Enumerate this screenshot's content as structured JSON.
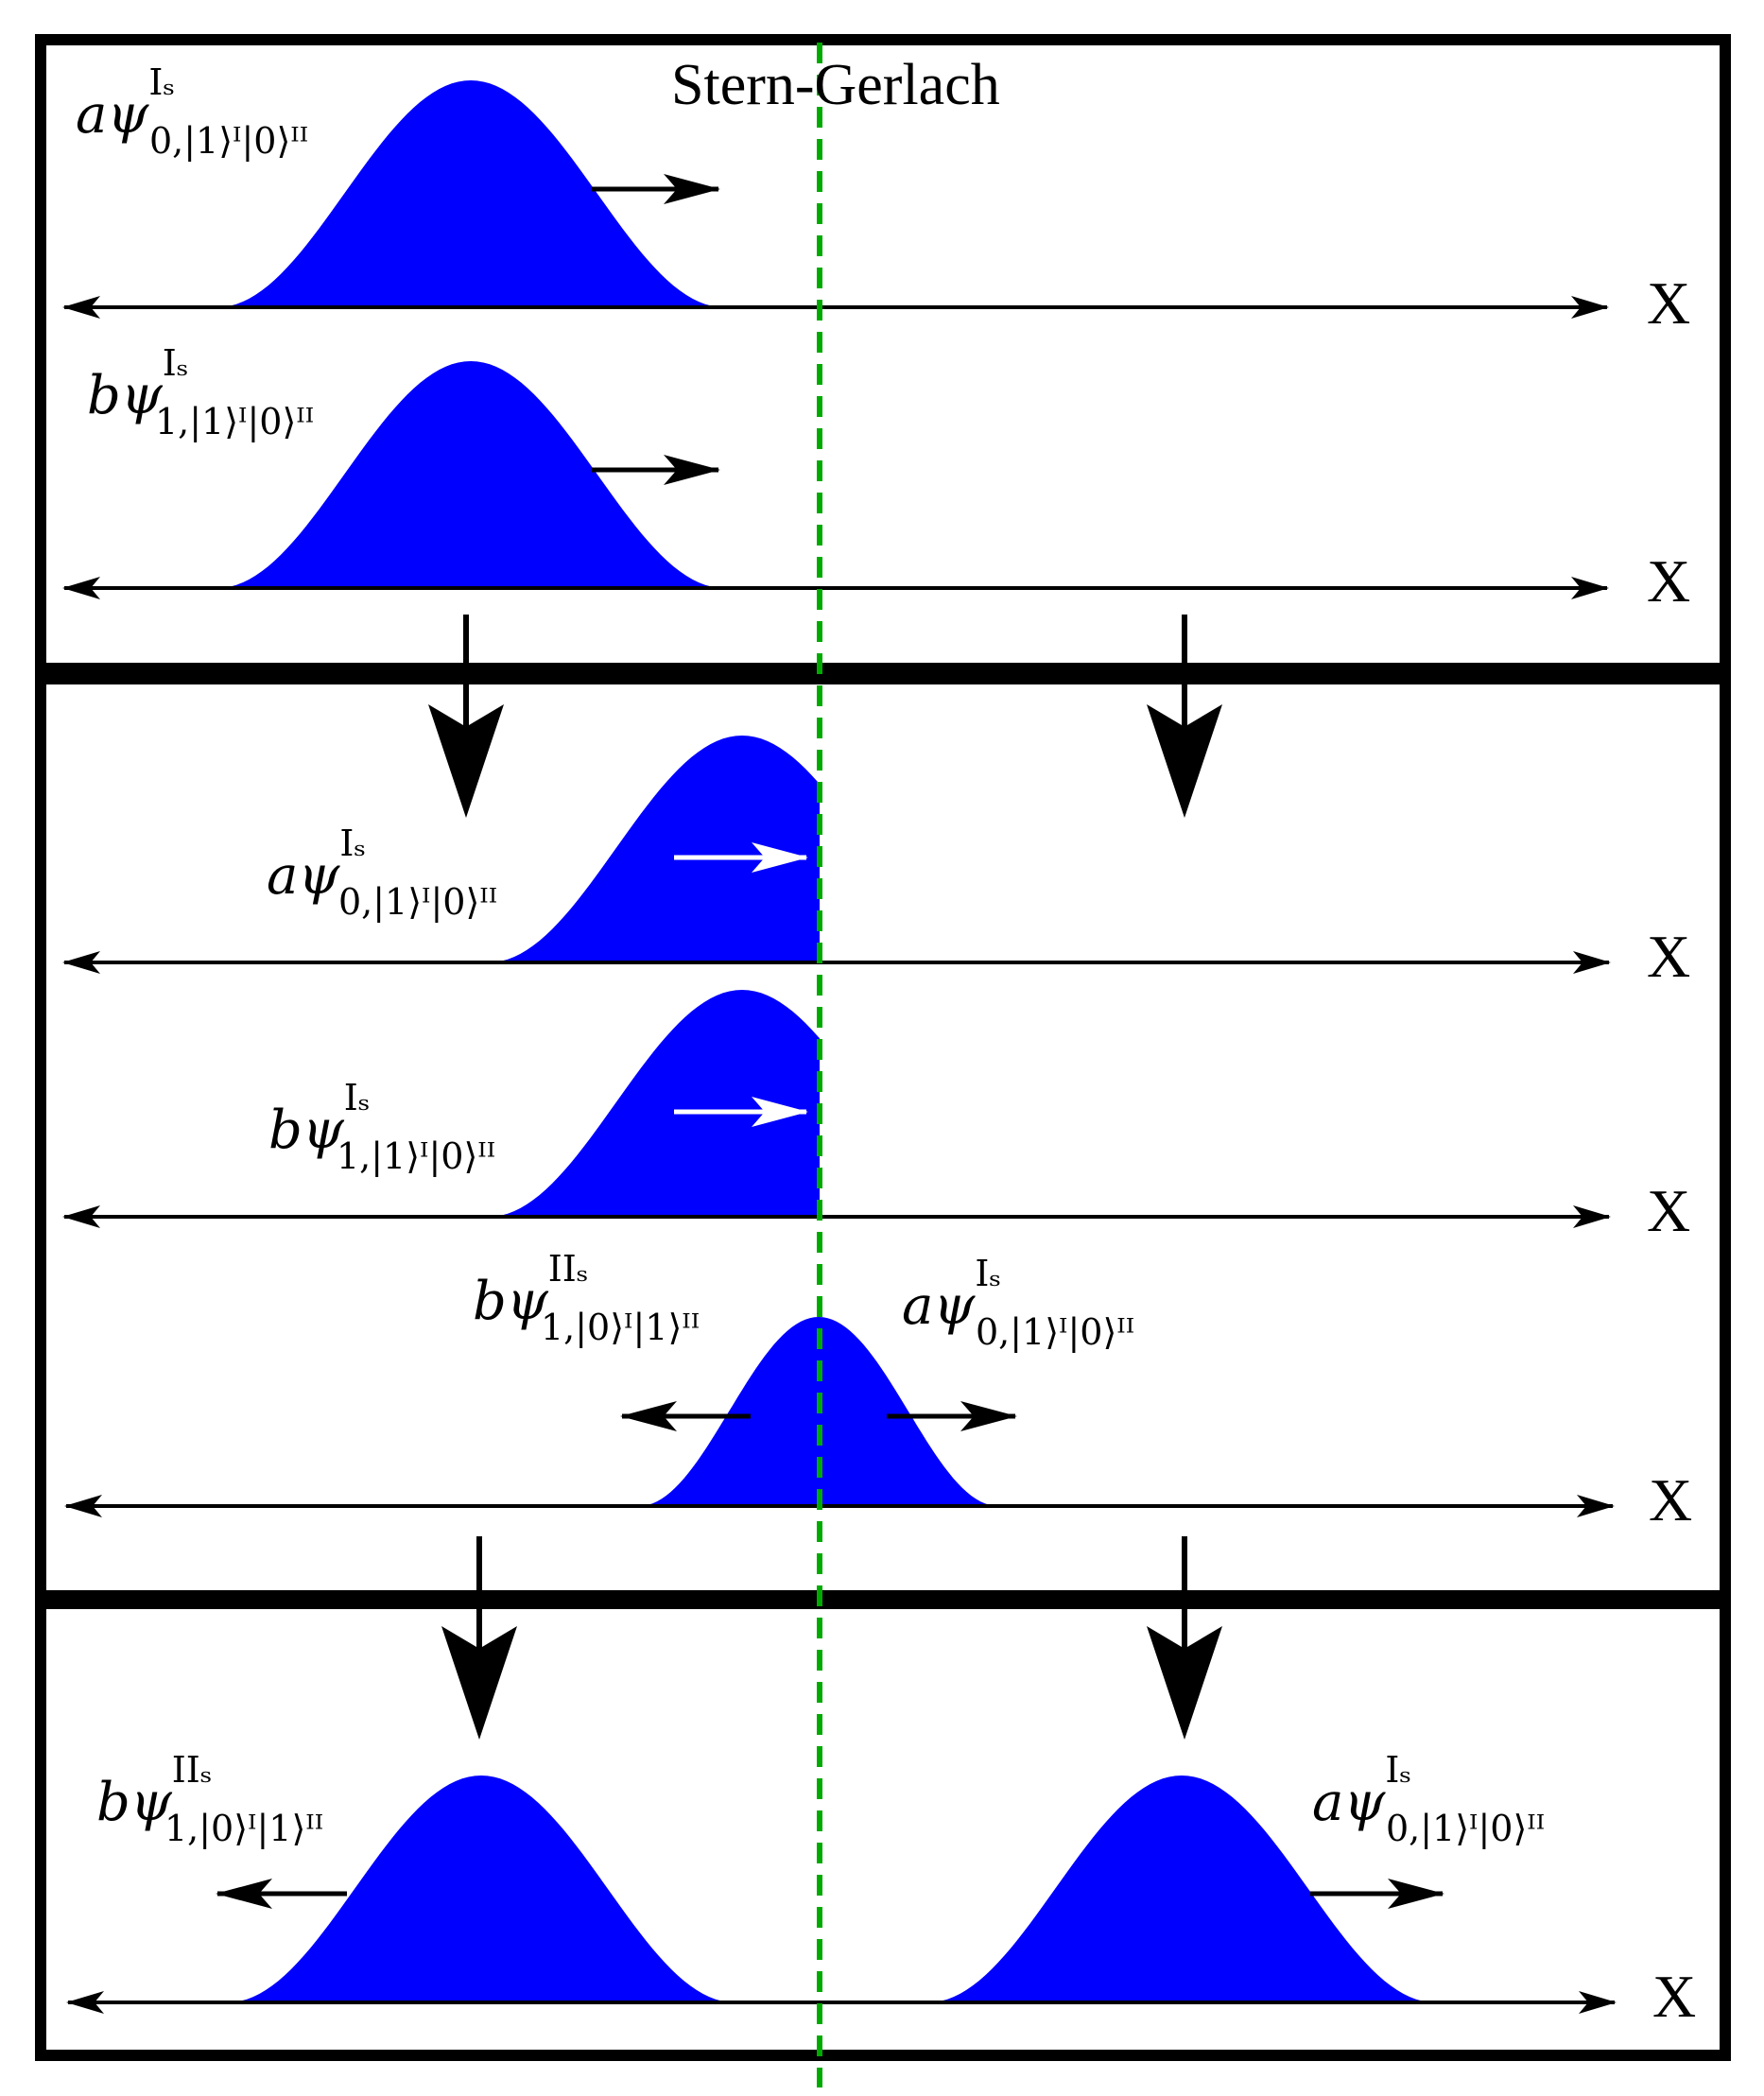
{
  "title": "Stern-Gerlach",
  "axis_label": "X",
  "colors": {
    "packet_fill": "#0000ff",
    "divider": "#00aa00",
    "frame": "#000000",
    "arrow_black": "#000000",
    "arrow_white": "#ffffff"
  },
  "labels": {
    "a_I": {
      "coef": "a",
      "sym": "ψ",
      "sub": "0,|1⟩ᴵ|0⟩ᴵᴵ",
      "sup": "Iₛ"
    },
    "b_I": {
      "coef": "b",
      "sym": "ψ",
      "sub": "1,|1⟩ᴵ|0⟩ᴵᴵ",
      "sup": "Iₛ"
    },
    "b_II": {
      "coef": "b",
      "sym": "ψ",
      "sub": "1,|0⟩ᴵ|1⟩ᴵᴵ",
      "sup": "IIₛ"
    }
  }
}
